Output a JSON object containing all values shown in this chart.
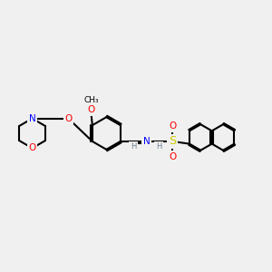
{
  "bg_color": "#f0f0f0",
  "bond_color": "#000000",
  "atom_colors": {
    "N": "#0000ff",
    "O": "#ff0000",
    "S": "#cccc00",
    "C": "#000000",
    "H": "#708090"
  },
  "font_size": 7.5,
  "fig_width": 3.0,
  "fig_height": 3.0,
  "dpi": 100
}
